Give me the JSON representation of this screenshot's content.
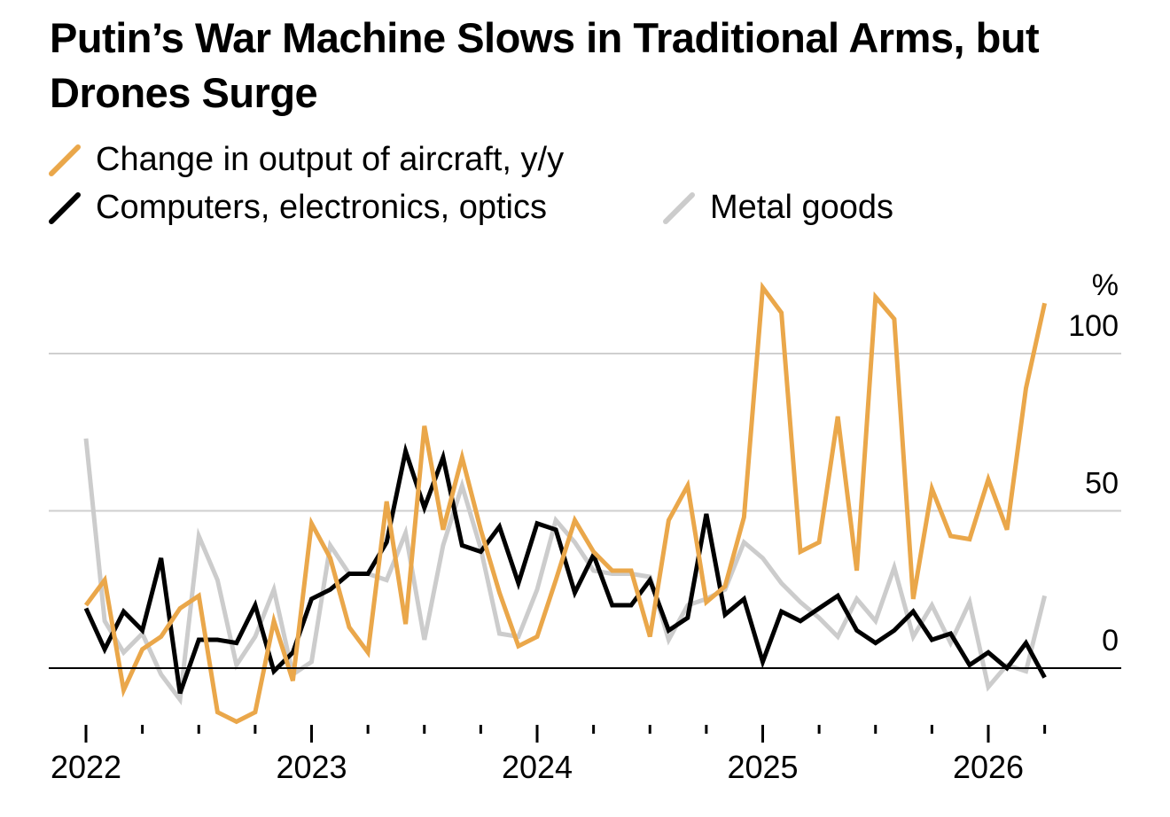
{
  "chart_data": {
    "type": "line",
    "title": "Putin’s War Machine Slows in Traditional Arms, but Drones Surge",
    "ylabel": "%",
    "ylim": [
      -15,
      115
    ],
    "yticks": [
      0,
      50,
      100
    ],
    "ytick_labels": [
      "0",
      "50",
      "100"
    ],
    "xlim": [
      2022.0,
      2026.4
    ],
    "xtick_labels": [
      "2022",
      "2023",
      "2024",
      "2025",
      "2026"
    ],
    "grid": true,
    "legend_position": "top-left",
    "series": [
      {
        "name": "Change in output of aircraft, y/y",
        "color": "#eaa74a",
        "x": [
          2022.0,
          2022.083,
          2022.167,
          2022.25,
          2022.333,
          2022.417,
          2022.5,
          2022.583,
          2022.667,
          2022.75,
          2022.833,
          2022.917,
          2023.0,
          2023.083,
          2023.167,
          2023.25,
          2023.333,
          2023.417,
          2023.5,
          2023.583,
          2023.667,
          2023.75,
          2023.833,
          2023.917,
          2024.0,
          2024.083,
          2024.167,
          2024.25,
          2024.333,
          2024.417,
          2024.5,
          2024.583,
          2024.667,
          2024.75,
          2024.833,
          2024.917,
          2025.0,
          2025.083,
          2025.167,
          2025.25,
          2025.333,
          2025.417,
          2025.5,
          2025.583,
          2025.667,
          2025.75,
          2025.833,
          2025.917,
          2026.0,
          2026.083,
          2026.167,
          2026.25
        ],
        "values": [
          20,
          28,
          -7,
          6,
          10,
          19,
          23,
          -14,
          -17,
          -14,
          15,
          -4,
          46,
          35,
          13,
          5,
          53,
          14,
          77,
          44,
          67,
          44,
          24,
          7,
          10,
          28,
          47,
          37,
          31,
          31,
          10,
          47,
          58,
          21,
          26,
          48,
          121,
          113,
          37,
          40,
          80,
          31,
          118,
          111,
          22,
          57,
          42,
          41,
          60,
          44,
          89,
          116
        ]
      },
      {
        "name": "Computers, electronics, optics",
        "color": "#000000",
        "x": [
          2022.0,
          2022.083,
          2022.167,
          2022.25,
          2022.333,
          2022.417,
          2022.5,
          2022.583,
          2022.667,
          2022.75,
          2022.833,
          2022.917,
          2023.0,
          2023.083,
          2023.167,
          2023.25,
          2023.333,
          2023.417,
          2023.5,
          2023.583,
          2023.667,
          2023.75,
          2023.833,
          2023.917,
          2024.0,
          2024.083,
          2024.167,
          2024.25,
          2024.333,
          2024.417,
          2024.5,
          2024.583,
          2024.667,
          2024.75,
          2024.833,
          2024.917,
          2025.0,
          2025.083,
          2025.167,
          2025.25,
          2025.333,
          2025.417,
          2025.5,
          2025.583,
          2025.667,
          2025.75,
          2025.833,
          2025.917,
          2026.0,
          2026.083,
          2026.167,
          2026.25
        ],
        "values": [
          19,
          6,
          18,
          12,
          35,
          -8,
          9,
          9,
          8,
          20,
          -1,
          5,
          22,
          25,
          30,
          30,
          40,
          69,
          51,
          67,
          39,
          37,
          45,
          27,
          46,
          44,
          24,
          36,
          20,
          20,
          28,
          12,
          16,
          49,
          17,
          22,
          2,
          18,
          15,
          19,
          23,
          12,
          8,
          12,
          18,
          9,
          11,
          1,
          5,
          0,
          8,
          -3
        ]
      },
      {
        "name": "Metal goods",
        "color": "#cccccc",
        "x": [
          2022.0,
          2022.083,
          2022.167,
          2022.25,
          2022.333,
          2022.417,
          2022.5,
          2022.583,
          2022.667,
          2022.75,
          2022.833,
          2022.917,
          2023.0,
          2023.083,
          2023.167,
          2023.25,
          2023.333,
          2023.417,
          2023.5,
          2023.583,
          2023.667,
          2023.75,
          2023.833,
          2023.917,
          2024.0,
          2024.083,
          2024.167,
          2024.25,
          2024.333,
          2024.417,
          2024.5,
          2024.583,
          2024.667,
          2024.75,
          2024.833,
          2024.917,
          2025.0,
          2025.083,
          2025.167,
          2025.25,
          2025.333,
          2025.417,
          2025.5,
          2025.583,
          2025.667,
          2025.75,
          2025.833,
          2025.917,
          2026.0,
          2026.083,
          2026.167,
          2026.25
        ],
        "values": [
          73,
          15,
          5,
          11,
          -2,
          -10,
          42,
          28,
          1,
          10,
          25,
          -2,
          2,
          39,
          30,
          30,
          28,
          43,
          9,
          39,
          58,
          38,
          11,
          10,
          25,
          47,
          40,
          31,
          30,
          30,
          29,
          9,
          20,
          22,
          25,
          40,
          35,
          27,
          21,
          16,
          10,
          22,
          15,
          32,
          10,
          20,
          8,
          21,
          -6,
          1,
          -1,
          23
        ]
      }
    ]
  }
}
